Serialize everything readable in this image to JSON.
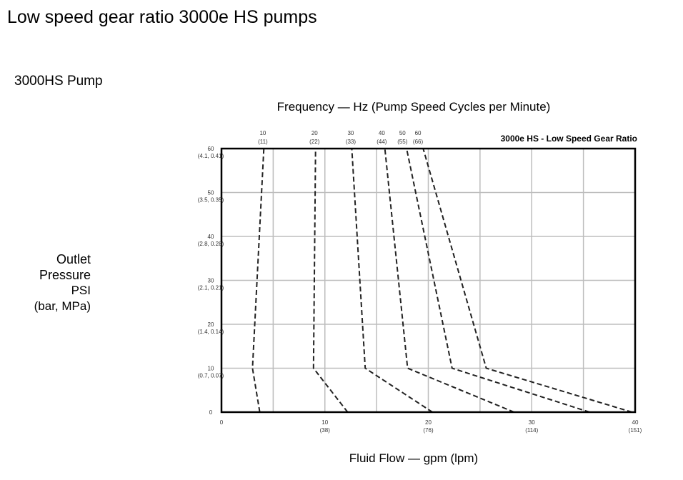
{
  "slide": {
    "title": "Low speed gear ratio 3000e HS pumps",
    "pump_label": "3000HS Pump",
    "top_axis_title": "Frequency — Hz (Pump Speed Cycles per Minute)",
    "x_axis_title": "Fluid Flow — gpm (lpm)",
    "y_axis_title": [
      "Outlet",
      "Pressure",
      "PSI",
      "(bar, MPa)"
    ]
  },
  "chart_data": {
    "type": "line",
    "title": "3000e HS - Low Speed Gear Ratio",
    "xlim": [
      0,
      40
    ],
    "ylim": [
      0,
      60
    ],
    "grid": true,
    "line_style": "dashed",
    "line_color": "#222222",
    "grid_color": "#bdbdbd",
    "x_ticks": [
      {
        "value": 0,
        "label": "0",
        "sub": ""
      },
      {
        "value": 10,
        "label": "10",
        "sub": "(38)"
      },
      {
        "value": 20,
        "label": "20",
        "sub": "(76)"
      },
      {
        "value": 30,
        "label": "30",
        "sub": "(114)"
      },
      {
        "value": 40,
        "label": "40",
        "sub": "(151)"
      }
    ],
    "y_ticks": [
      {
        "value": 0,
        "label": "0",
        "sub": ""
      },
      {
        "value": 10,
        "label": "10",
        "sub": "(0.7, 0.07)"
      },
      {
        "value": 20,
        "label": "20",
        "sub": "(1.4, 0.14)"
      },
      {
        "value": 30,
        "label": "30",
        "sub": "(2.1, 0.21)"
      },
      {
        "value": 40,
        "label": "40",
        "sub": "(2.8, 0.28)"
      },
      {
        "value": 50,
        "label": "50",
        "sub": "(3.5, 0.35)"
      },
      {
        "value": 60,
        "label": "60",
        "sub": "(4.1, 0.41)"
      }
    ],
    "frequency_labels": [
      {
        "hz": "10",
        "cpm": "(11)",
        "x": 4.0
      },
      {
        "hz": "20",
        "cpm": "(22)",
        "x": 9.0
      },
      {
        "hz": "30",
        "cpm": "(33)",
        "x": 12.5
      },
      {
        "hz": "40",
        "cpm": "(44)",
        "x": 15.5
      },
      {
        "hz": "50",
        "cpm": "(55)",
        "x": 17.5
      },
      {
        "hz": "60",
        "cpm": "(66)",
        "x": 19.0
      }
    ],
    "series": [
      {
        "name": "10 (11)",
        "points": [
          [
            3.7,
            0
          ],
          [
            3.0,
            10
          ],
          [
            4.1,
            60
          ]
        ]
      },
      {
        "name": "20 (22)",
        "points": [
          [
            12.2,
            0
          ],
          [
            8.9,
            10
          ],
          [
            9.1,
            60
          ]
        ]
      },
      {
        "name": "30 (33)",
        "points": [
          [
            20.4,
            0
          ],
          [
            13.9,
            10
          ],
          [
            12.6,
            60
          ]
        ]
      },
      {
        "name": "40 (44)",
        "points": [
          [
            28.3,
            0
          ],
          [
            18.0,
            10
          ],
          [
            15.8,
            60
          ]
        ]
      },
      {
        "name": "50 (55)",
        "points": [
          [
            35.6,
            0
          ],
          [
            22.3,
            10
          ],
          [
            17.9,
            60
          ]
        ]
      },
      {
        "name": "60 (66)",
        "points": [
          [
            39.7,
            0
          ],
          [
            25.6,
            10
          ],
          [
            19.5,
            60
          ]
        ]
      }
    ]
  }
}
